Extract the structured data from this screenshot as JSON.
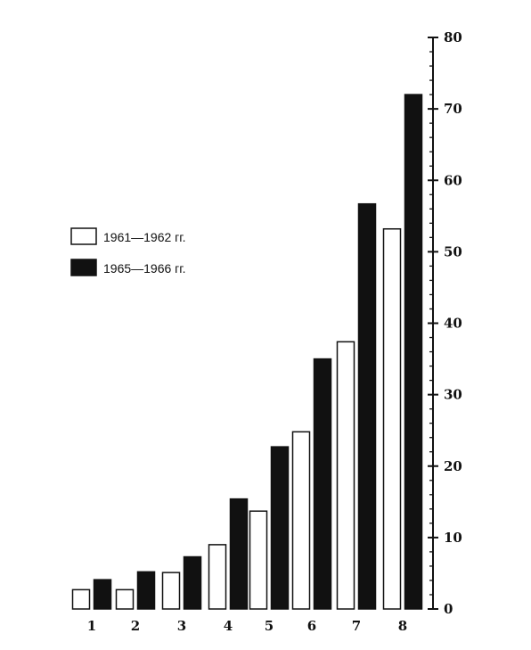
{
  "chart_data": {
    "type": "bar",
    "categories": [
      "1",
      "2",
      "3",
      "4",
      "5",
      "6",
      "7",
      "8"
    ],
    "series": [
      {
        "name": "1961—1962 гг.",
        "values": [
          2.7,
          2.7,
          5.1,
          9.0,
          13.7,
          24.8,
          37.4,
          53.2
        ]
      },
      {
        "name": "1965—1966 гг.",
        "values": [
          4.1,
          5.2,
          7.3,
          15.4,
          22.7,
          35.0,
          56.7,
          72.0
        ]
      }
    ],
    "ylim": [
      0,
      80
    ],
    "y_ticks": [
      "0",
      "10",
      "20",
      "30",
      "40",
      "50",
      "60",
      "70",
      "80"
    ],
    "y_axis_side": "right",
    "grid": false,
    "legend_position": "left-middle",
    "colors": {
      "series_1_fill": "#ffffff",
      "series_2_fill": "#111111",
      "stroke": "#111111"
    }
  }
}
